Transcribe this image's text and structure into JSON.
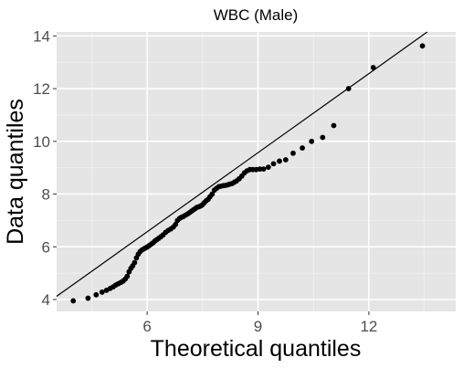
{
  "chart_data": {
    "type": "scatter",
    "title": "WBC (Male)",
    "xlabel": "Theoretical quantiles",
    "ylabel": "Data quantiles",
    "xlim": [
      3.55,
      14.35
    ],
    "ylim": [
      3.55,
      14.15
    ],
    "x_ticks": [
      6,
      9,
      12
    ],
    "x_tick_labels": [
      "6",
      "9",
      "12"
    ],
    "y_ticks": [
      4,
      6,
      8,
      10,
      12,
      14
    ],
    "y_tick_labels": [
      "4",
      "6",
      "8",
      "10",
      "12",
      "14"
    ],
    "grid": true,
    "legend": "none",
    "reference_line": {
      "intercept": 0.57,
      "slope": 1.0
    },
    "points": {
      "x": [
        4.0,
        4.4,
        4.62,
        4.78,
        4.9,
        5.0,
        5.08,
        5.15,
        5.22,
        5.29,
        5.35,
        5.41,
        5.46,
        5.51,
        5.56,
        5.61,
        5.66,
        5.71,
        5.76,
        5.81,
        5.86,
        5.91,
        5.96,
        6.01,
        6.06,
        6.11,
        6.16,
        6.21,
        6.26,
        6.31,
        6.37,
        6.43,
        6.5,
        6.57,
        6.64,
        6.71,
        6.77,
        6.82,
        6.88,
        6.93,
        6.98,
        7.04,
        7.1,
        7.15,
        7.2,
        7.25,
        7.3,
        7.35,
        7.4,
        7.45,
        7.5,
        7.55,
        7.6,
        7.65,
        7.7,
        7.76,
        7.82,
        7.88,
        7.94,
        8.0,
        8.06,
        8.12,
        8.18,
        8.24,
        8.3,
        8.36,
        8.42,
        8.49,
        8.56,
        8.63,
        8.7,
        8.78,
        8.86,
        8.95,
        9.05,
        9.15,
        9.28,
        9.42,
        9.58,
        9.75,
        9.95,
        10.2,
        10.45,
        10.75,
        11.05,
        11.45,
        12.12,
        13.45
      ],
      "y": [
        3.95,
        4.05,
        4.18,
        4.28,
        4.35,
        4.42,
        4.48,
        4.55,
        4.6,
        4.65,
        4.7,
        4.78,
        4.88,
        5.05,
        5.18,
        5.28,
        5.4,
        5.58,
        5.72,
        5.82,
        5.88,
        5.92,
        5.96,
        6.0,
        6.05,
        6.1,
        6.15,
        6.22,
        6.27,
        6.32,
        6.38,
        6.45,
        6.55,
        6.62,
        6.68,
        6.75,
        6.85,
        7.0,
        7.08,
        7.12,
        7.15,
        7.2,
        7.25,
        7.3,
        7.35,
        7.4,
        7.45,
        7.5,
        7.52,
        7.55,
        7.6,
        7.68,
        7.75,
        7.8,
        7.9,
        8.0,
        8.15,
        8.22,
        8.28,
        8.3,
        8.32,
        8.33,
        8.35,
        8.38,
        8.4,
        8.45,
        8.5,
        8.58,
        8.68,
        8.8,
        8.88,
        8.93,
        8.93,
        8.93,
        8.95,
        8.95,
        9.02,
        9.15,
        9.25,
        9.3,
        9.55,
        9.75,
        10.0,
        10.15,
        10.6,
        12.0,
        12.8,
        13.62
      ]
    }
  }
}
